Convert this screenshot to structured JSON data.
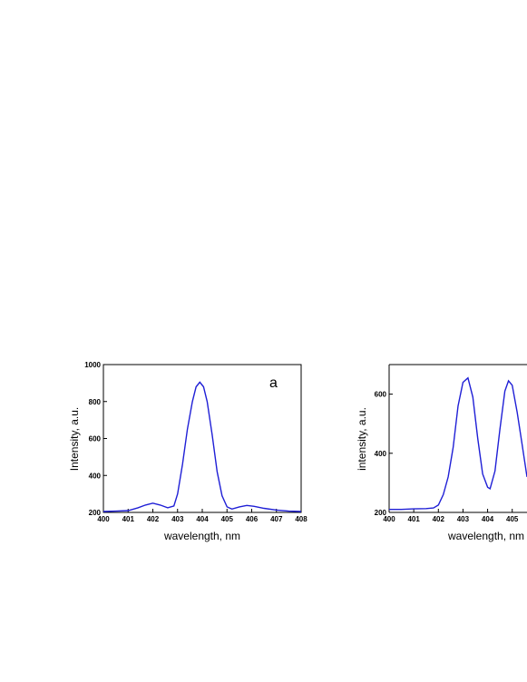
{
  "chart_data": [
    {
      "type": "line",
      "panel_label": "a",
      "xlabel": "wavelength, nm",
      "ylabel": "Intensity, a.u.",
      "xlim": [
        400,
        408
      ],
      "ylim": [
        200,
        1000
      ],
      "xticks": [
        "400",
        "401",
        "402",
        "403",
        "404",
        "405",
        "406",
        "407",
        "408"
      ],
      "yticks": [
        "200",
        "400",
        "600",
        "800",
        "1000"
      ],
      "line_color": "#1f1fd6",
      "series": [
        {
          "x": [
            400.0,
            400.5,
            401.0,
            401.4,
            401.7,
            402.0,
            402.3,
            402.6,
            402.85,
            403.0,
            403.2,
            403.4,
            403.6,
            403.75,
            403.9,
            404.05,
            404.2,
            404.4,
            404.6,
            404.8,
            405.0,
            405.2,
            405.5,
            405.8,
            406.1,
            406.5,
            407.0,
            407.5,
            408.0
          ],
          "y": [
            205,
            207,
            210,
            225,
            240,
            250,
            240,
            225,
            235,
            300,
            460,
            650,
            800,
            880,
            905,
            880,
            800,
            620,
            420,
            290,
            230,
            218,
            230,
            238,
            233,
            222,
            213,
            207,
            205
          ]
        }
      ]
    },
    {
      "type": "line",
      "panel_label": "",
      "xlabel": "wavelength, nm",
      "ylabel": "intensity, a.u.",
      "xlim": [
        400,
        407
      ],
      "ylim": [
        200,
        700
      ],
      "xticks": [
        "400",
        "401",
        "402",
        "403",
        "404",
        "405"
      ],
      "yticks": [
        "200",
        "400",
        "600"
      ],
      "line_color": "#1f1fd6",
      "series": [
        {
          "x": [
            400.0,
            400.5,
            401.0,
            401.5,
            401.8,
            402.0,
            402.2,
            402.4,
            402.6,
            402.8,
            403.0,
            403.2,
            403.4,
            403.6,
            403.8,
            404.0,
            404.1,
            404.3,
            404.5,
            404.7,
            404.85,
            405.0,
            405.2,
            405.4,
            405.6
          ],
          "y": [
            210,
            210,
            212,
            213,
            215,
            225,
            260,
            320,
            420,
            560,
            640,
            655,
            590,
            450,
            330,
            285,
            280,
            340,
            480,
            610,
            645,
            630,
            540,
            430,
            320
          ]
        }
      ]
    }
  ]
}
